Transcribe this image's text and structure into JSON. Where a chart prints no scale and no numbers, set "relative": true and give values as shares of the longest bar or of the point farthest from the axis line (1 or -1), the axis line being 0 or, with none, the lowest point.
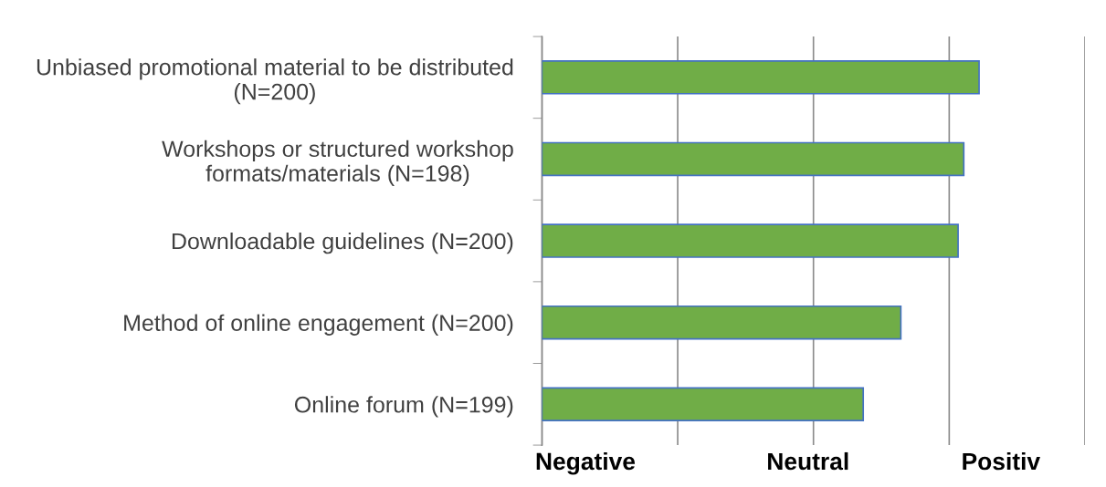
{
  "chart_data": {
    "type": "bar",
    "orientation": "horizontal",
    "relative": true,
    "categories": [
      "Unbiased promotional material to be distributed\n(N=200)",
      "Workshops or structured workshop\nformats/materials (N=198)",
      "Downloadable guidelines (N=200)",
      "Method of online engagement (N=200)",
      "Online forum (N=199)"
    ],
    "values": [
      1,
      0.965,
      0.952,
      0.821,
      0.735
    ],
    "color": "#70ad47",
    "annotations": [
      "Negative",
      "Neutral",
      "Positiv"
    ],
    "grid": "x"
  }
}
